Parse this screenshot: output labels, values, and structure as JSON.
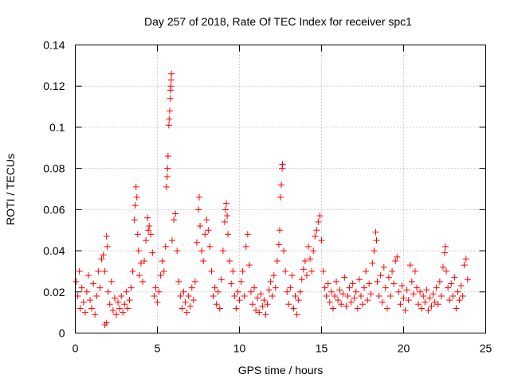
{
  "chart_data": {
    "type": "scatter",
    "title": "Day 257 of 2018, Rate Of TEC Index for receiver spc1",
    "xlabel": "GPS time / hours",
    "ylabel": "ROTI / TECUs",
    "xlim": [
      0,
      25
    ],
    "ylim": [
      0,
      0.14
    ],
    "xticks": [
      "0",
      "5",
      "10",
      "15",
      "20",
      "25"
    ],
    "yticks": [
      "0",
      "0.02",
      "0.04",
      "0.06",
      "0.08",
      "0.1",
      "0.12",
      "0.14"
    ],
    "grid": true,
    "marker": "+",
    "color": "#ff0000",
    "series": [
      {
        "name": "ROTI",
        "points": [
          [
            0.05,
            0.025
          ],
          [
            0.15,
            0.018
          ],
          [
            0.25,
            0.03
          ],
          [
            0.3,
            0.012
          ],
          [
            0.4,
            0.022
          ],
          [
            0.5,
            0.015
          ],
          [
            0.6,
            0.01
          ],
          [
            0.7,
            0.02
          ],
          [
            0.8,
            0.028
          ],
          [
            0.9,
            0.016
          ],
          [
            1.0,
            0.012
          ],
          [
            1.1,
            0.024
          ],
          [
            1.2,
            0.009
          ],
          [
            1.3,
            0.018
          ],
          [
            1.4,
            0.03
          ],
          [
            1.5,
            0.022
          ],
          [
            1.6,
            0.036
          ],
          [
            1.7,
            0.038
          ],
          [
            1.8,
            0.03
          ],
          [
            1.9,
            0.047
          ],
          [
            1.95,
            0.042
          ],
          [
            1.8,
            0.004
          ],
          [
            1.9,
            0.005
          ],
          [
            2.0,
            0.02
          ],
          [
            2.1,
            0.014
          ],
          [
            2.2,
            0.025
          ],
          [
            2.3,
            0.011
          ],
          [
            2.4,
            0.017
          ],
          [
            2.5,
            0.009
          ],
          [
            2.6,
            0.015
          ],
          [
            2.7,
            0.012
          ],
          [
            2.8,
            0.018
          ],
          [
            2.9,
            0.01
          ],
          [
            3.0,
            0.014
          ],
          [
            3.1,
            0.02
          ],
          [
            3.2,
            0.012
          ],
          [
            3.3,
            0.016
          ],
          [
            3.4,
            0.022
          ],
          [
            3.5,
            0.03
          ],
          [
            3.6,
            0.055
          ],
          [
            3.65,
            0.062
          ],
          [
            3.7,
            0.071
          ],
          [
            3.75,
            0.066
          ],
          [
            3.8,
            0.048
          ],
          [
            3.85,
            0.04
          ],
          [
            3.9,
            0.028
          ],
          [
            4.0,
            0.034
          ],
          [
            4.1,
            0.025
          ],
          [
            4.2,
            0.035
          ],
          [
            4.3,
            0.045
          ],
          [
            4.4,
            0.056
          ],
          [
            4.45,
            0.05
          ],
          [
            4.5,
            0.052
          ],
          [
            4.6,
            0.048
          ],
          [
            4.7,
            0.039
          ],
          [
            4.8,
            0.018
          ],
          [
            4.9,
            0.022
          ],
          [
            5.0,
            0.015
          ],
          [
            5.1,
            0.02
          ],
          [
            5.2,
            0.028
          ],
          [
            5.3,
            0.035
          ],
          [
            5.4,
            0.03
          ],
          [
            5.5,
            0.042
          ],
          [
            5.55,
            0.071
          ],
          [
            5.6,
            0.076
          ],
          [
            5.62,
            0.08
          ],
          [
            5.65,
            0.086
          ],
          [
            5.7,
            0.101
          ],
          [
            5.72,
            0.104
          ],
          [
            5.75,
            0.108
          ],
          [
            5.78,
            0.114
          ],
          [
            5.8,
            0.118
          ],
          [
            5.82,
            0.12
          ],
          [
            5.84,
            0.123
          ],
          [
            5.86,
            0.126
          ],
          [
            5.9,
            0.045
          ],
          [
            6.0,
            0.055
          ],
          [
            6.1,
            0.058
          ],
          [
            6.2,
            0.04
          ],
          [
            6.3,
            0.025
          ],
          [
            6.4,
            0.018
          ],
          [
            6.5,
            0.012
          ],
          [
            6.6,
            0.02
          ],
          [
            6.7,
            0.015
          ],
          [
            6.8,
            0.01
          ],
          [
            6.9,
            0.018
          ],
          [
            7.0,
            0.013
          ],
          [
            7.1,
            0.022
          ],
          [
            7.2,
            0.016
          ],
          [
            7.3,
            0.025
          ],
          [
            7.4,
            0.044
          ],
          [
            7.5,
            0.06
          ],
          [
            7.55,
            0.066
          ],
          [
            7.6,
            0.052
          ],
          [
            7.7,
            0.04
          ],
          [
            7.8,
            0.035
          ],
          [
            7.9,
            0.048
          ],
          [
            8.0,
            0.055
          ],
          [
            8.1,
            0.05
          ],
          [
            8.2,
            0.042
          ],
          [
            8.3,
            0.03
          ],
          [
            8.4,
            0.018
          ],
          [
            8.5,
            0.022
          ],
          [
            8.6,
            0.014
          ],
          [
            8.7,
            0.02
          ],
          [
            8.8,
            0.012
          ],
          [
            8.9,
            0.026
          ],
          [
            9.0,
            0.04
          ],
          [
            9.1,
            0.054
          ],
          [
            9.15,
            0.06
          ],
          [
            9.2,
            0.063
          ],
          [
            9.25,
            0.057
          ],
          [
            9.3,
            0.048
          ],
          [
            9.4,
            0.035
          ],
          [
            9.5,
            0.024
          ],
          [
            9.6,
            0.03
          ],
          [
            9.7,
            0.018
          ],
          [
            9.8,
            0.012
          ],
          [
            9.9,
            0.02
          ],
          [
            10.0,
            0.016
          ],
          [
            10.1,
            0.025
          ],
          [
            10.2,
            0.03
          ],
          [
            10.3,
            0.018
          ],
          [
            10.4,
            0.042
          ],
          [
            10.5,
            0.048
          ],
          [
            10.6,
            0.033
          ],
          [
            10.7,
            0.02
          ],
          [
            10.8,
            0.014
          ],
          [
            10.9,
            0.022
          ],
          [
            11.0,
            0.011
          ],
          [
            11.1,
            0.017
          ],
          [
            11.2,
            0.01
          ],
          [
            11.3,
            0.019
          ],
          [
            11.4,
            0.013
          ],
          [
            11.5,
            0.016
          ],
          [
            11.6,
            0.009
          ],
          [
            11.7,
            0.014
          ],
          [
            11.8,
            0.021
          ],
          [
            11.9,
            0.025
          ],
          [
            12.0,
            0.018
          ],
          [
            12.1,
            0.028
          ],
          [
            12.2,
            0.022
          ],
          [
            12.3,
            0.035
          ],
          [
            12.4,
            0.043
          ],
          [
            12.45,
            0.05
          ],
          [
            12.5,
            0.066
          ],
          [
            12.55,
            0.072
          ],
          [
            12.6,
            0.08
          ],
          [
            12.62,
            0.082
          ],
          [
            12.7,
            0.04
          ],
          [
            12.8,
            0.03
          ],
          [
            12.9,
            0.02
          ],
          [
            13.0,
            0.014
          ],
          [
            13.1,
            0.022
          ],
          [
            13.2,
            0.028
          ],
          [
            13.3,
            0.012
          ],
          [
            13.4,
            0.018
          ],
          [
            13.5,
            0.009
          ],
          [
            13.6,
            0.016
          ],
          [
            13.7,
            0.02
          ],
          [
            13.8,
            0.026
          ],
          [
            13.9,
            0.031
          ],
          [
            14.0,
            0.035
          ],
          [
            14.1,
            0.028
          ],
          [
            14.2,
            0.042
          ],
          [
            14.3,
            0.036
          ],
          [
            14.4,
            0.03
          ],
          [
            14.5,
            0.04
          ],
          [
            14.6,
            0.047
          ],
          [
            14.7,
            0.05
          ],
          [
            14.8,
            0.054
          ],
          [
            14.9,
            0.057
          ],
          [
            15.0,
            0.045
          ],
          [
            15.1,
            0.03
          ],
          [
            15.2,
            0.022
          ],
          [
            15.3,
            0.018
          ],
          [
            15.4,
            0.024
          ],
          [
            15.5,
            0.015
          ],
          [
            15.6,
            0.02
          ],
          [
            15.7,
            0.012
          ],
          [
            15.8,
            0.018
          ],
          [
            15.9,
            0.025
          ],
          [
            16.0,
            0.016
          ],
          [
            16.1,
            0.021
          ],
          [
            16.2,
            0.014
          ],
          [
            16.3,
            0.019
          ],
          [
            16.4,
            0.027
          ],
          [
            16.5,
            0.013
          ],
          [
            16.6,
            0.018
          ],
          [
            16.7,
            0.022
          ],
          [
            16.8,
            0.015
          ],
          [
            16.9,
            0.024
          ],
          [
            17.0,
            0.017
          ],
          [
            17.1,
            0.02
          ],
          [
            17.2,
            0.012
          ],
          [
            17.3,
            0.026
          ],
          [
            17.4,
            0.018
          ],
          [
            17.5,
            0.014
          ],
          [
            17.6,
            0.022
          ],
          [
            17.7,
            0.03
          ],
          [
            17.8,
            0.016
          ],
          [
            17.9,
            0.024
          ],
          [
            18.0,
            0.019
          ],
          [
            18.1,
            0.034
          ],
          [
            18.2,
            0.04
          ],
          [
            18.3,
            0.049
          ],
          [
            18.35,
            0.045
          ],
          [
            18.4,
            0.025
          ],
          [
            18.5,
            0.018
          ],
          [
            18.6,
            0.028
          ],
          [
            18.7,
            0.015
          ],
          [
            18.8,
            0.032
          ],
          [
            18.9,
            0.022
          ],
          [
            19.0,
            0.012
          ],
          [
            19.1,
            0.027
          ],
          [
            19.2,
            0.018
          ],
          [
            19.3,
            0.03
          ],
          [
            19.4,
            0.024
          ],
          [
            19.5,
            0.035
          ],
          [
            19.6,
            0.037
          ],
          [
            19.7,
            0.02
          ],
          [
            19.8,
            0.014
          ],
          [
            19.9,
            0.023
          ],
          [
            20.0,
            0.017
          ],
          [
            20.1,
            0.011
          ],
          [
            20.2,
            0.021
          ],
          [
            20.3,
            0.016
          ],
          [
            20.4,
            0.033
          ],
          [
            20.5,
            0.025
          ],
          [
            20.6,
            0.019
          ],
          [
            20.7,
            0.03
          ],
          [
            20.8,
            0.022
          ],
          [
            20.9,
            0.014
          ],
          [
            21.0,
            0.02
          ],
          [
            21.1,
            0.012
          ],
          [
            21.2,
            0.018
          ],
          [
            21.3,
            0.015
          ],
          [
            21.4,
            0.021
          ],
          [
            21.5,
            0.011
          ],
          [
            21.6,
            0.017
          ],
          [
            21.7,
            0.013
          ],
          [
            21.8,
            0.019
          ],
          [
            21.9,
            0.015
          ],
          [
            22.0,
            0.022
          ],
          [
            22.1,
            0.014
          ],
          [
            22.2,
            0.025
          ],
          [
            22.3,
            0.018
          ],
          [
            22.4,
            0.032
          ],
          [
            22.5,
            0.039
          ],
          [
            22.55,
            0.042
          ],
          [
            22.6,
            0.03
          ],
          [
            22.7,
            0.022
          ],
          [
            22.8,
            0.016
          ],
          [
            22.9,
            0.024
          ],
          [
            23.0,
            0.018
          ],
          [
            23.1,
            0.027
          ],
          [
            23.2,
            0.012
          ],
          [
            23.3,
            0.02
          ],
          [
            23.4,
            0.016
          ],
          [
            23.5,
            0.023
          ],
          [
            23.6,
            0.018
          ],
          [
            23.7,
            0.033
          ],
          [
            23.8,
            0.036
          ],
          [
            23.9,
            0.026
          ]
        ]
      }
    ]
  }
}
